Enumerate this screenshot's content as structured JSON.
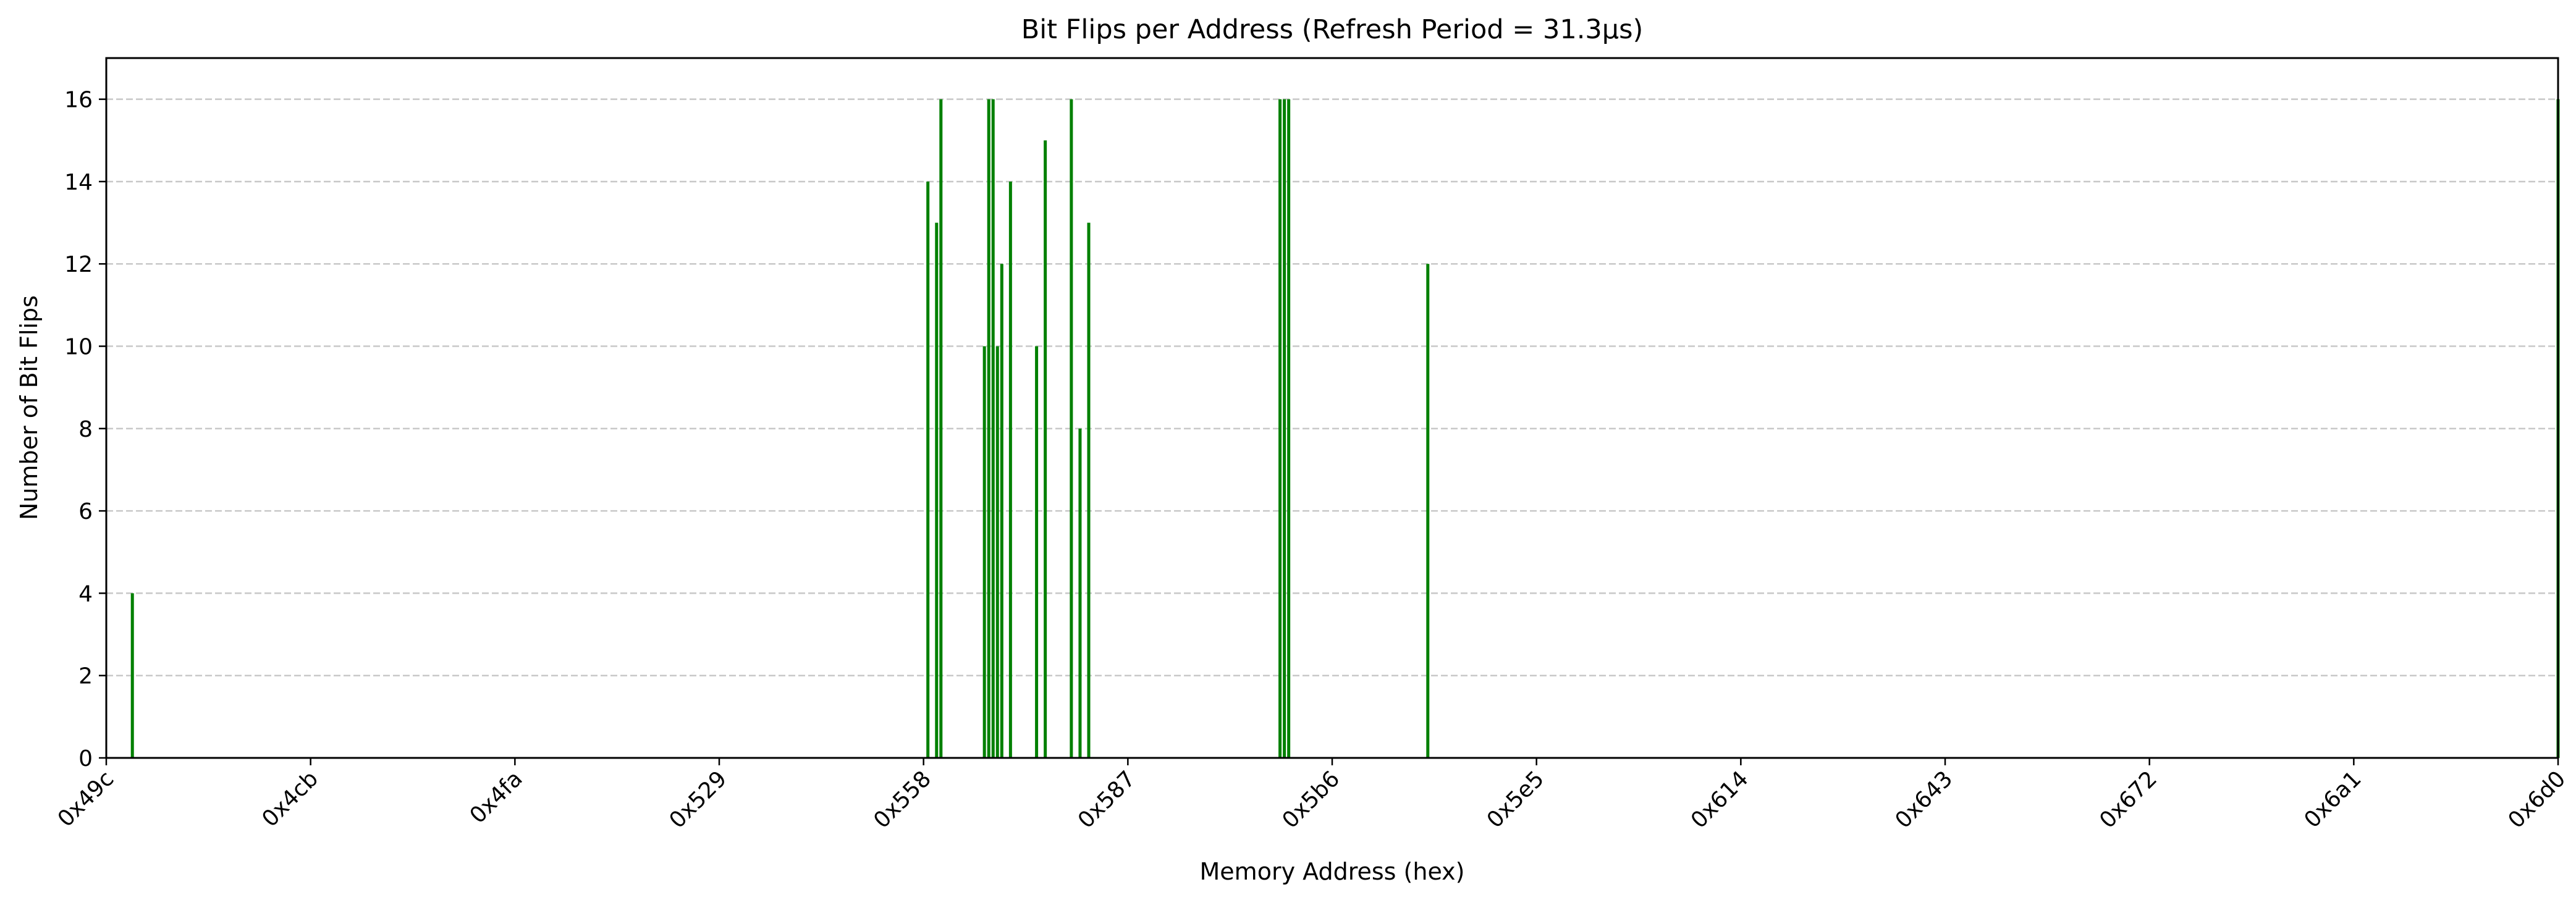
{
  "chart_data": {
    "type": "bar",
    "title": "Bit Flips per Address (Refresh Period = 31.3µs)",
    "xlabel": "Memory Address (hex)",
    "ylabel": "Number of Bit Flips",
    "xlim": [
      "0x49c",
      "0x6d0"
    ],
    "ylim": [
      0,
      17
    ],
    "x_ticks": [
      "0x49c",
      "0x4cb",
      "0x4fa",
      "0x529",
      "0x558",
      "0x587",
      "0x5b6",
      "0x5e5",
      "0x614",
      "0x643",
      "0x672",
      "0x6a1",
      "0x6d0"
    ],
    "y_ticks": [
      0,
      2,
      4,
      6,
      8,
      10,
      12,
      14,
      16
    ],
    "grid": "y-dashed",
    "bar_color": "#008000",
    "addresses": [
      "0x4a2",
      "0x559",
      "0x55b",
      "0x55c",
      "0x566",
      "0x567",
      "0x568",
      "0x569",
      "0x56a",
      "0x56c",
      "0x572",
      "0x574",
      "0x57a",
      "0x57c",
      "0x57e",
      "0x5aa",
      "0x5ab",
      "0x5ac",
      "0x5cc",
      "0x6d0"
    ],
    "values": [
      4,
      14,
      13,
      16,
      10,
      16,
      16,
      10,
      12,
      14,
      10,
      15,
      16,
      8,
      13,
      16,
      16,
      16,
      12,
      16
    ]
  }
}
